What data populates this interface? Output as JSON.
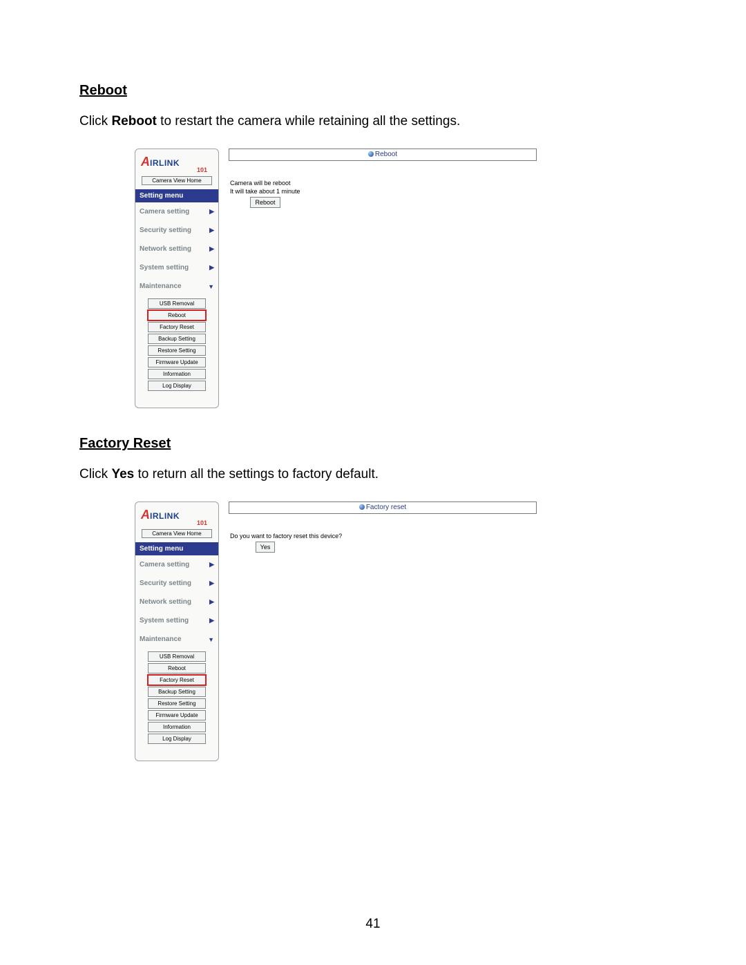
{
  "page_number": "41",
  "sections": [
    {
      "heading": "Reboot",
      "body_prefix": "Click ",
      "body_bold": "Reboot",
      "body_suffix": " to restart the camera while retaining all the settings."
    },
    {
      "heading": "Factory Reset",
      "body_prefix": "Click ",
      "body_bold": "Yes",
      "body_suffix": " to return all the settings to factory default."
    }
  ],
  "sidebar": {
    "home_button": "Camera View Home",
    "menu_header": "Setting menu",
    "items": [
      "Camera setting",
      "Security setting",
      "Network setting",
      "System setting",
      "Maintenance"
    ],
    "sub_items": [
      "USB Removal",
      "Reboot",
      "Factory Reset",
      "Backup Setting",
      "Restore Setting",
      "Firmware Update",
      "Information",
      "Log Display"
    ]
  },
  "shot1": {
    "title": "Reboot",
    "line1": "Camera will be reboot",
    "line2": "It will take about 1 minute",
    "button": "Reboot",
    "highlight_index": 1
  },
  "shot2": {
    "title": "Factory reset",
    "line1": "Do you want to factory reset this device?",
    "button": "Yes",
    "highlight_index": 2
  },
  "colors": {
    "menu_header_bg": "#2c3b8d",
    "link_text": "#7b8588",
    "arrow": "#2c3b8d",
    "highlight_border": "#d21f1f",
    "logo_red": "#d4322c",
    "logo_blue": "#1b3f8b"
  }
}
